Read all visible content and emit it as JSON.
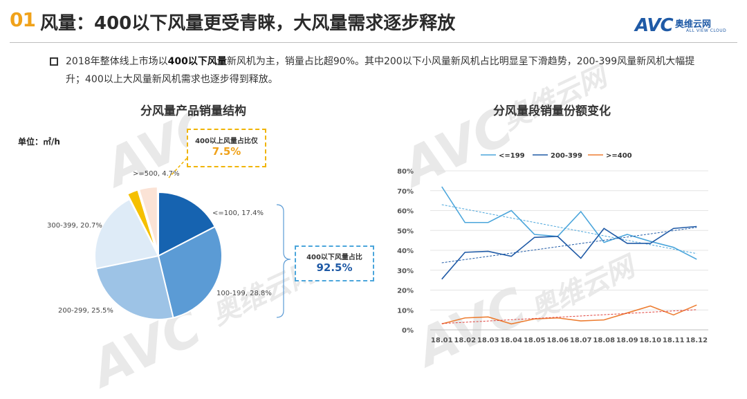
{
  "header": {
    "section_number": "01",
    "title": "风量：400以下风量更受青睐，大风量需求逐步释放",
    "logo_letters": "AVC",
    "logo_cn": "奥维云网",
    "logo_en": "ALL VIEW CLOUD"
  },
  "description": {
    "part1": "2018年整体线上市场以",
    "bold": "400以下风量",
    "part2": "新风机为主，销量占比超90%。其中200以下小风量新风机占比明显呈下滑趋势，200-399风量新风机大幅提升；400以上大风量新风机需求也逐步得到释放。"
  },
  "watermark": {
    "text": "AVC",
    "cn": "奥维云网",
    "en": "ALL VIEW CLOUD"
  },
  "pie_panel": {
    "title": "分风量产品销量结构",
    "unit_label": "单位：㎡/h",
    "callout_small_text": "400以上风量占比仅",
    "callout_small_value": "7.5%",
    "callout_large_text": "400以下风量占比",
    "callout_large_value": "92.5%"
  },
  "line_panel": {
    "title": "分风量段销量份额变化"
  },
  "colors": {
    "accent_orange": "#f0a21a",
    "brand_blue": "#1f5aa6",
    "pie_lt100": "#1663b0",
    "pie_100_199": "#5b9bd5",
    "pie_200_299": "#9dc3e6",
    "pie_300_399": "#deebf7",
    "pie_400_499": "#f5c000",
    "pie_ge500": "#fbe3d6",
    "line_le199": "#4aa5db",
    "line_200_399": "#1f5aa6",
    "line_ge400": "#ed7d31"
  },
  "chart_data": [
    {
      "type": "pie",
      "title": "分风量产品销量结构",
      "slices": [
        {
          "label": "<=100, 17.4%",
          "value": 17.4
        },
        {
          "label": "100-199, 28.8%",
          "value": 28.8
        },
        {
          "label": "200-299, 25.5%",
          "value": 25.5
        },
        {
          "label": "300-399, 20.7%",
          "value": 20.7
        },
        {
          "label": "",
          "value": 2.8
        },
        {
          "label": ">=500, 4.7%",
          "value": 4.7
        }
      ]
    },
    {
      "type": "line",
      "title": "分风量段销量份额变化",
      "categories": [
        "18.01",
        "18.02",
        "18.03",
        "18.04",
        "18.05",
        "18.06",
        "18.07",
        "18.08",
        "18.09",
        "18.10",
        "18.11",
        "18.12"
      ],
      "ylim": [
        0,
        80
      ],
      "yticks": [
        "0%",
        "10%",
        "20%",
        "30%",
        "40%",
        "50%",
        "60%",
        "70%",
        "80%"
      ],
      "legend_position": "top",
      "trendlines": true,
      "series": [
        {
          "name": "<=199",
          "values": [
            72,
            54,
            54,
            60,
            48,
            47,
            59.5,
            44,
            48,
            44.5,
            41.5,
            35.5
          ]
        },
        {
          "name": "200-399",
          "values": [
            25.5,
            39,
            39.5,
            37,
            46.5,
            47,
            36,
            51,
            43.5,
            43.5,
            51,
            52
          ]
        },
        {
          "name": ">=400",
          "values": [
            3,
            6,
            6.5,
            3,
            5.5,
            6,
            4.5,
            5,
            8.5,
            12,
            7.5,
            12.5
          ]
        }
      ]
    }
  ]
}
